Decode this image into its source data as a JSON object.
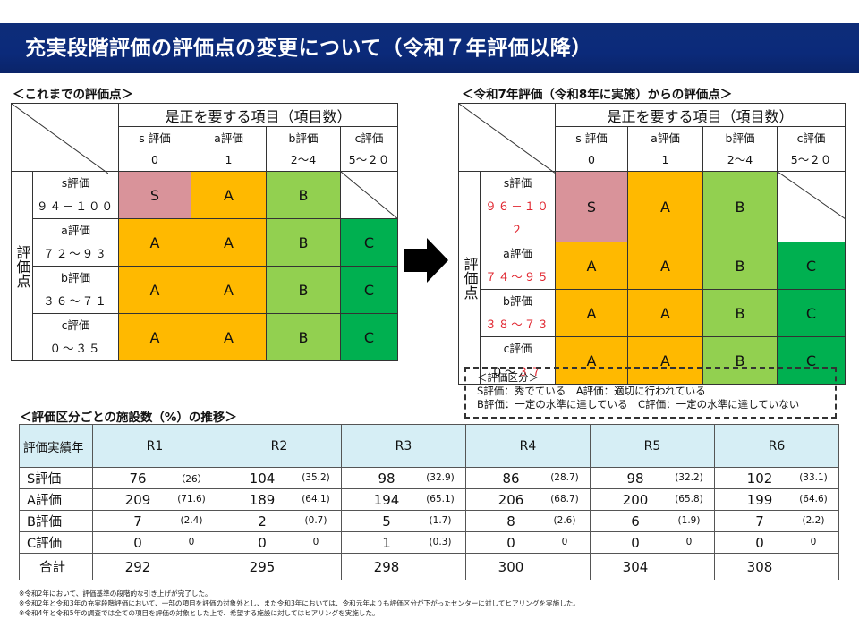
{
  "title": "充実段階評価の評価点の変更について（令和７年評価以降）",
  "left": {
    "heading": "＜これまでの評価点＞",
    "col_header_title": "是正を要する項目（項目数）",
    "cols": [
      {
        "grade": "s 評価",
        "count": "0"
      },
      {
        "grade": "a評価",
        "count": "1"
      },
      {
        "grade": "b評価",
        "count": "2～4"
      },
      {
        "grade": "c評価",
        "count": "5～２０"
      }
    ],
    "row_header": "評価点",
    "rows": [
      {
        "grade": "s評価",
        "range": "９４－１００"
      },
      {
        "grade": "a評価",
        "range": "７２～９３"
      },
      {
        "grade": "b評価",
        "range": "３６～７１"
      },
      {
        "grade": "c評価",
        "range": "０～３５"
      }
    ]
  },
  "right": {
    "heading": "＜令和7年評価（令和8年に実施）からの評価点＞",
    "col_header_title": "是正を要する項目（項目数）",
    "cols": [
      {
        "grade": "s 評価",
        "count": "0"
      },
      {
        "grade": "a評価",
        "count": "1"
      },
      {
        "grade": "b評価",
        "count": "2～4"
      },
      {
        "grade": "c評価",
        "count": "5～２０"
      }
    ],
    "row_header": "評価点",
    "rows": [
      {
        "grade": "s評価",
        "range_prefix": "",
        "range_red": "９６－１０２"
      },
      {
        "grade": "a評価",
        "range_prefix": "",
        "range_red": "７４～９５"
      },
      {
        "grade": "b評価",
        "range_prefix": "",
        "range_red": "３８～７３"
      },
      {
        "grade": "c評価",
        "range_prefix": "０～",
        "range_red": "３７"
      }
    ]
  },
  "matrix_cells": [
    [
      "S",
      "A",
      "B",
      ""
    ],
    [
      "A",
      "A",
      "B",
      "C"
    ],
    [
      "A",
      "A",
      "B",
      "C"
    ],
    [
      "A",
      "A",
      "B",
      "C"
    ]
  ],
  "colors": {
    "S": "#d9939a",
    "A": "#ffb900",
    "B": "#92d050",
    "C": "#00b050",
    "title_bg": "#0b2a7a",
    "header_bg": "#d6eef5"
  },
  "legend": {
    "title": "＜評価区分＞",
    "line1": "S評価：秀でている　A評価：適切に行われている",
    "line2": "B評価：一定の水準に達している　C評価：一定の水準に達していない"
  },
  "counts": {
    "heading": "＜評価区分ごとの施設数（%）の推移＞",
    "corner": "評価実績年",
    "years": [
      "R1",
      "R2",
      "R3",
      "R4",
      "R5",
      "R6"
    ],
    "rows": [
      {
        "label": "S評価",
        "values": [
          [
            "76",
            "（26）"
          ],
          [
            "104",
            "(35.2)"
          ],
          [
            "98",
            "(32.9)"
          ],
          [
            "86",
            "(28.7)"
          ],
          [
            "98",
            "(32.2)"
          ],
          [
            "102",
            "(33.1)"
          ]
        ]
      },
      {
        "label": "A評価",
        "values": [
          [
            "209",
            "(71.6)"
          ],
          [
            "189",
            "(64.1)"
          ],
          [
            "194",
            "(65.1)"
          ],
          [
            "206",
            "(68.7)"
          ],
          [
            "200",
            "(65.8)"
          ],
          [
            "199",
            "(64.6)"
          ]
        ]
      },
      {
        "label": "B評価",
        "values": [
          [
            "7",
            "(2.4)"
          ],
          [
            "2",
            "(0.7)"
          ],
          [
            "5",
            "(1.7)"
          ],
          [
            "8",
            "(2.6)"
          ],
          [
            "6",
            "(1.9)"
          ],
          [
            "7",
            "(2.2)"
          ]
        ]
      },
      {
        "label": "C評価",
        "values": [
          [
            "0",
            "0"
          ],
          [
            "0",
            "0"
          ],
          [
            "1",
            "(0.3)"
          ],
          [
            "0",
            "0"
          ],
          [
            "0",
            "0"
          ],
          [
            "0",
            "0"
          ]
        ]
      }
    ],
    "total_label": "合計",
    "totals": [
      "292",
      "295",
      "298",
      "300",
      "304",
      "308"
    ]
  },
  "notes": [
    "※令和2年において、評価基準の段階的な引き上げが完了した。",
    "※令和2年と令和3年の充実段階評価において、一部の項目を評価の対象外とし、また令和3年においては、令和元年よりも評価区分が下がったセンターに対してヒアリングを実施した。",
    "※令和4年と令和5年の調査では全ての項目を評価の対象とした上で、希望する施設に対してはヒアリングを実施した。"
  ]
}
